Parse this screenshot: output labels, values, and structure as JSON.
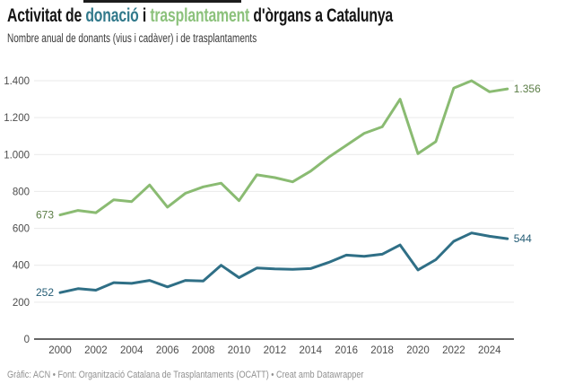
{
  "header": {
    "title_parts": [
      {
        "text": "Activitat de ",
        "color": "#151515"
      },
      {
        "text": "donació",
        "color": "#31798b"
      },
      {
        "text": " i ",
        "color": "#151515"
      },
      {
        "text": "trasplantament",
        "color": "#8cc27c"
      },
      {
        "text": " d'òrgans a Catalunya",
        "color": "#151515"
      }
    ],
    "subtitle": "Nombre anual de donants (vius i cadàver) i de trasplantaments"
  },
  "chart_data": {
    "type": "line",
    "title": "Activitat de donació i trasplantament d'òrgans a Catalunya",
    "subtitle": "Nombre anual de donants (vius i cadàver) i de trasplantaments",
    "x": [
      2000,
      2001,
      2002,
      2003,
      2004,
      2005,
      2006,
      2007,
      2008,
      2009,
      2010,
      2011,
      2012,
      2013,
      2014,
      2015,
      2016,
      2017,
      2018,
      2019,
      2020,
      2021,
      2022,
      2023,
      2024,
      2025
    ],
    "series": [
      {
        "name": "trasplantaments",
        "color": "#8abb72",
        "label_color": "#5b7d46",
        "start_label": "673",
        "end_label": "1.356",
        "values": [
          673,
          697,
          685,
          755,
          745,
          835,
          715,
          790,
          825,
          845,
          750,
          890,
          875,
          852,
          910,
          985,
          1050,
          1115,
          1150,
          1300,
          1005,
          1070,
          1360,
          1400,
          1340,
          1356
        ]
      },
      {
        "name": "donants",
        "color": "#2f6f86",
        "label_color": "#255d76",
        "start_label": "252",
        "end_label": "544",
        "values": [
          252,
          273,
          265,
          306,
          302,
          318,
          283,
          318,
          315,
          400,
          333,
          385,
          380,
          378,
          382,
          415,
          455,
          448,
          460,
          510,
          375,
          430,
          530,
          575,
          557,
          544
        ]
      }
    ],
    "ylim": [
      0,
      1400
    ],
    "yticks": [
      0,
      200,
      400,
      600,
      800,
      1000,
      1200,
      1400
    ],
    "ytick_labels": [
      "0",
      "200",
      "400",
      "600",
      "800",
      "1.000",
      "1.200",
      "1.400"
    ],
    "xticks": [
      2000,
      2002,
      2004,
      2006,
      2008,
      2010,
      2012,
      2014,
      2016,
      2018,
      2020,
      2022,
      2024
    ],
    "grid": true,
    "legend_position": "none",
    "axis_color": "#333333",
    "grid_color": "#e9e9e9",
    "tick_label_color": "#4d4d4d"
  },
  "footer": {
    "text": "Gràfic: ACN • Font: Organització Catalana de Trasplantaments (OCATT) • Creat amb Datawrapper"
  }
}
